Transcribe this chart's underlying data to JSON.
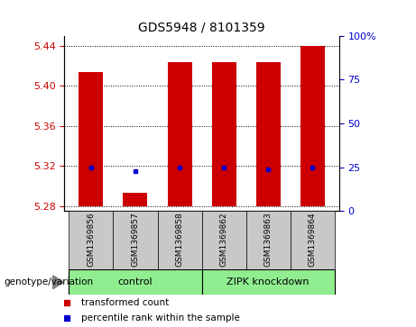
{
  "title": "GDS5948 / 8101359",
  "samples": [
    "GSM1369856",
    "GSM1369857",
    "GSM1369858",
    "GSM1369862",
    "GSM1369863",
    "GSM1369864"
  ],
  "red_values": [
    5.414,
    5.293,
    5.424,
    5.424,
    5.424,
    5.44
  ],
  "blue_values": [
    5.318,
    5.315,
    5.318,
    5.318,
    5.317,
    5.318
  ],
  "ylim_left": [
    5.275,
    5.45
  ],
  "yticks_left": [
    5.28,
    5.32,
    5.36,
    5.4,
    5.44
  ],
  "yticks_right": [
    0,
    25,
    50,
    75,
    100
  ],
  "ylim_right": [
    0,
    100
  ],
  "bar_bottom": 5.28,
  "group_color": "#90EE90",
  "sample_bg_color": "#C8C8C8",
  "bar_color": "#CC0000",
  "dot_color": "#0000CC",
  "legend_red_label": "transformed count",
  "legend_blue_label": "percentile rank within the sample",
  "genotype_label": "genotype/variation",
  "title_fontsize": 10,
  "tick_fontsize": 8,
  "sample_fontsize": 6.5,
  "group_fontsize": 8,
  "legend_fontsize": 7.5,
  "bar_width": 0.55
}
